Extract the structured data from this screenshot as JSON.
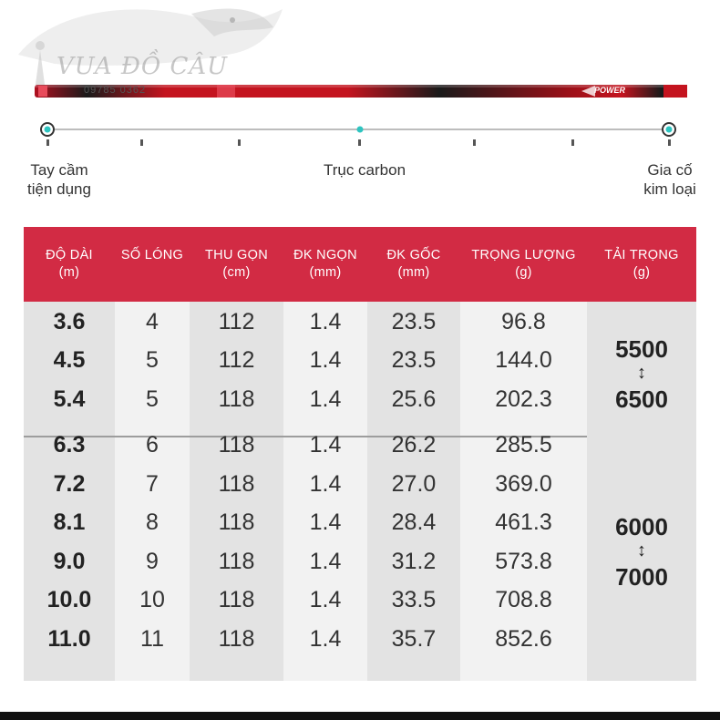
{
  "brand": {
    "logo_text": "VUA ĐỒ CÂU",
    "phone": "09785 0362"
  },
  "rod": {
    "label_power": "POWER",
    "colors": {
      "red": "#c4141f",
      "black": "#1a1a1a",
      "accent": "#e84b5b"
    }
  },
  "scale": {
    "left_label_line1": "Tay cầm",
    "left_label_line2": "tiện dụng",
    "center_label": "Trục carbon",
    "right_label_line1": "Gia cố",
    "right_label_line2": "kim loại",
    "dot_color": "#2ec4c0"
  },
  "table": {
    "header_color": "#d22b44",
    "headers": [
      {
        "line1": "ĐỘ DÀI",
        "line2": "(m)"
      },
      {
        "line1": "SỐ LÓNG",
        "line2": ""
      },
      {
        "line1": "THU GỌN",
        "line2": "(cm)"
      },
      {
        "line1": "ĐK NGỌN",
        "line2": "(mm)"
      },
      {
        "line1": "ĐK GỐC",
        "line2": "(mm)"
      },
      {
        "line1": "TRỌNG LƯỢNG",
        "line2": "(g)"
      },
      {
        "line1": "TẢI TRỌNG",
        "line2": "(g)"
      }
    ],
    "rows": [
      {
        "length": "3.6",
        "sections": "4",
        "closed": "112",
        "tip": "1.4",
        "base": "23.5",
        "weight": "96.8"
      },
      {
        "length": "4.5",
        "sections": "5",
        "closed": "112",
        "tip": "1.4",
        "base": "23.5",
        "weight": "144.0"
      },
      {
        "length": "5.4",
        "sections": "5",
        "closed": "118",
        "tip": "1.4",
        "base": "25.6",
        "weight": "202.3"
      },
      {
        "length": "6.3",
        "sections": "6",
        "closed": "118",
        "tip": "1.4",
        "base": "26.2",
        "weight": "285.5"
      },
      {
        "length": "7.2",
        "sections": "7",
        "closed": "118",
        "tip": "1.4",
        "base": "27.0",
        "weight": "369.0"
      },
      {
        "length": "8.1",
        "sections": "8",
        "closed": "118",
        "tip": "1.4",
        "base": "28.4",
        "weight": "461.3"
      },
      {
        "length": "9.0",
        "sections": "9",
        "closed": "118",
        "tip": "1.4",
        "base": "31.2",
        "weight": "573.8"
      },
      {
        "length": "10.0",
        "sections": "10",
        "closed": "118",
        "tip": "1.4",
        "base": "33.5",
        "weight": "708.8"
      },
      {
        "length": "11.0",
        "sections": "11",
        "closed": "118",
        "tip": "1.4",
        "base": "35.7",
        "weight": "852.6"
      }
    ],
    "load_groups": [
      {
        "from": "5500",
        "to": "6500"
      },
      {
        "from": "6000",
        "to": "7000"
      }
    ]
  }
}
